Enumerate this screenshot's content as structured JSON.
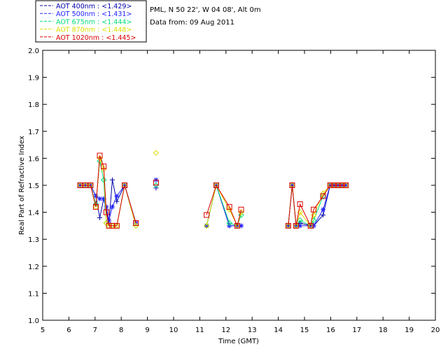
{
  "chart_data": {
    "type": "line",
    "title_lines": [
      "PML, N 50 22', W 04 08', Alt 0m",
      "Data from: 09 Aug 2011"
    ],
    "xlabel": "Time (GMT)",
    "ylabel": "Real Part of Refractive Index",
    "xlim": [
      5,
      20
    ],
    "ylim": [
      1.0,
      2.0
    ],
    "xticks": [
      "5",
      "6",
      "7",
      "8",
      "9",
      "10",
      "11",
      "12",
      "13",
      "14",
      "15",
      "16",
      "17",
      "18",
      "19",
      "20"
    ],
    "yticks": [
      "1.0",
      "1.1",
      "1.2",
      "1.3",
      "1.4",
      "1.5",
      "1.6",
      "1.7",
      "1.8",
      "1.9",
      "2.0"
    ],
    "legend_position": "top-left, outside plot",
    "series": [
      {
        "name": "AOT  400nm : <1.429>",
        "color": "#0000aa",
        "marker": "plus",
        "points": [
          [
            6.43,
            1.5
          ],
          [
            6.63,
            1.5
          ],
          [
            6.83,
            1.5
          ],
          [
            7.03,
            1.46
          ],
          [
            7.18,
            1.38
          ],
          [
            7.33,
            1.45
          ],
          [
            7.43,
            1.41
          ],
          [
            7.53,
            1.36
          ],
          [
            7.66,
            1.52
          ],
          [
            7.83,
            1.44
          ],
          [
            8.13,
            1.5
          ],
          [
            8.56,
            1.36
          ],
          [
            9.33,
            1.49
          ],
          [
            11.26,
            1.35
          ],
          [
            11.63,
            1.5
          ],
          [
            12.13,
            1.35
          ],
          [
            12.43,
            1.35
          ],
          [
            12.58,
            1.35
          ],
          [
            14.38,
            1.35
          ],
          [
            14.53,
            1.5
          ],
          [
            14.68,
            1.35
          ],
          [
            14.83,
            1.36
          ],
          [
            15.23,
            1.35
          ],
          [
            15.35,
            1.35
          ],
          [
            15.71,
            1.39
          ],
          [
            15.98,
            1.5
          ],
          [
            16.13,
            1.5
          ],
          [
            16.28,
            1.5
          ],
          [
            16.43,
            1.5
          ],
          [
            16.58,
            1.5
          ]
        ]
      },
      {
        "name": "AOT  500nm : <1.431>",
        "color": "#2222ff",
        "marker": "star",
        "points": [
          [
            6.43,
            1.5
          ],
          [
            6.63,
            1.5
          ],
          [
            6.83,
            1.5
          ],
          [
            7.03,
            1.46
          ],
          [
            7.18,
            1.45
          ],
          [
            7.33,
            1.45
          ],
          [
            7.43,
            1.42
          ],
          [
            7.53,
            1.37
          ],
          [
            7.66,
            1.42
          ],
          [
            7.83,
            1.46
          ],
          [
            8.13,
            1.5
          ],
          [
            8.56,
            1.36
          ],
          [
            9.33,
            1.52
          ],
          [
            11.26,
            1.35
          ],
          [
            11.63,
            1.5
          ],
          [
            12.13,
            1.35
          ],
          [
            12.43,
            1.35
          ],
          [
            12.58,
            1.35
          ],
          [
            14.38,
            1.35
          ],
          [
            14.53,
            1.5
          ],
          [
            14.68,
            1.35
          ],
          [
            14.83,
            1.35
          ],
          [
            15.23,
            1.35
          ],
          [
            15.35,
            1.35
          ],
          [
            15.71,
            1.41
          ],
          [
            15.98,
            1.5
          ],
          [
            16.13,
            1.5
          ],
          [
            16.28,
            1.5
          ],
          [
            16.43,
            1.5
          ],
          [
            16.58,
            1.5
          ]
        ]
      },
      {
        "name": "AOT  675nm : <1.444>",
        "color": "#00dd77",
        "marker": "diamond",
        "points": [
          [
            6.43,
            1.5
          ],
          [
            6.63,
            1.5
          ],
          [
            6.83,
            1.5
          ],
          [
            7.03,
            1.43
          ],
          [
            7.18,
            1.59
          ],
          [
            7.33,
            1.52
          ],
          [
            7.43,
            1.36
          ],
          [
            7.53,
            1.35
          ],
          [
            7.66,
            1.35
          ],
          [
            7.83,
            1.35
          ],
          [
            8.13,
            1.5
          ],
          [
            8.56,
            1.35
          ],
          [
            9.33,
            1.5
          ],
          [
            11.26,
            1.35
          ],
          [
            11.63,
            1.5
          ],
          [
            12.13,
            1.36
          ],
          [
            12.43,
            1.35
          ],
          [
            12.58,
            1.39
          ],
          [
            14.38,
            1.35
          ],
          [
            14.53,
            1.5
          ],
          [
            14.68,
            1.35
          ],
          [
            14.83,
            1.37
          ],
          [
            15.23,
            1.35
          ],
          [
            15.35,
            1.37
          ],
          [
            15.71,
            1.46
          ],
          [
            15.98,
            1.5
          ],
          [
            16.13,
            1.5
          ],
          [
            16.28,
            1.5
          ],
          [
            16.43,
            1.5
          ],
          [
            16.58,
            1.5
          ]
        ]
      },
      {
        "name": "AOT  870nm : <1.448>",
        "color": "#dddd00",
        "marker": "diamond",
        "points": [
          [
            6.43,
            1.5
          ],
          [
            6.63,
            1.5
          ],
          [
            6.83,
            1.5
          ],
          [
            7.03,
            1.42
          ],
          [
            7.18,
            1.6
          ],
          [
            7.33,
            1.56
          ],
          [
            7.43,
            1.36
          ],
          [
            7.53,
            1.35
          ],
          [
            7.66,
            1.35
          ],
          [
            7.83,
            1.35
          ],
          [
            8.13,
            1.5
          ],
          [
            8.56,
            1.35
          ],
          [
            9.33,
            1.62
          ],
          [
            11.26,
            1.35
          ],
          [
            11.63,
            1.5
          ],
          [
            12.13,
            1.41
          ],
          [
            12.43,
            1.35
          ],
          [
            12.58,
            1.4
          ],
          [
            14.38,
            1.35
          ],
          [
            14.53,
            1.5
          ],
          [
            14.68,
            1.35
          ],
          [
            14.83,
            1.4
          ],
          [
            15.23,
            1.35
          ],
          [
            15.35,
            1.39
          ],
          [
            15.71,
            1.47
          ],
          [
            15.98,
            1.5
          ],
          [
            16.13,
            1.5
          ],
          [
            16.28,
            1.5
          ],
          [
            16.43,
            1.5
          ],
          [
            16.58,
            1.5
          ]
        ]
      },
      {
        "name": "AOT 1020nm : <1.445>",
        "color": "#dd0000",
        "marker": "square",
        "points": [
          [
            6.43,
            1.5
          ],
          [
            6.63,
            1.5
          ],
          [
            6.83,
            1.5
          ],
          [
            7.03,
            1.42
          ],
          [
            7.18,
            1.61
          ],
          [
            7.33,
            1.57
          ],
          [
            7.43,
            1.4
          ],
          [
            7.53,
            1.35
          ],
          [
            7.66,
            1.35
          ],
          [
            7.83,
            1.35
          ],
          [
            8.13,
            1.5
          ],
          [
            8.56,
            1.36
          ],
          [
            9.33,
            1.51
          ],
          [
            11.26,
            1.39
          ],
          [
            11.63,
            1.5
          ],
          [
            12.13,
            1.42
          ],
          [
            12.43,
            1.35
          ],
          [
            12.58,
            1.41
          ],
          [
            14.38,
            1.35
          ],
          [
            14.53,
            1.5
          ],
          [
            14.68,
            1.35
          ],
          [
            14.83,
            1.43
          ],
          [
            15.23,
            1.35
          ],
          [
            15.35,
            1.41
          ],
          [
            15.71,
            1.46
          ],
          [
            15.98,
            1.5
          ],
          [
            16.13,
            1.5
          ],
          [
            16.28,
            1.5
          ],
          [
            16.43,
            1.5
          ],
          [
            16.58,
            1.5
          ]
        ]
      }
    ]
  }
}
